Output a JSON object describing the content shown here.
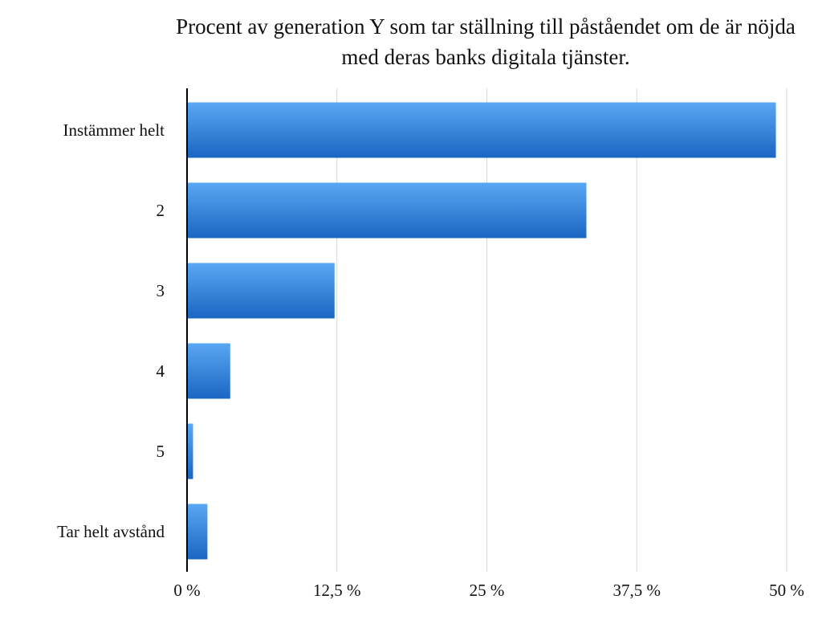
{
  "chart_data": {
    "type": "bar",
    "orientation": "horizontal",
    "title": "Procent av generation Y som tar ställning till påståendet om de är nöjda med deras banks digitala tjänster.",
    "categories": [
      "Instämmer helt",
      "2",
      "3",
      "4",
      "5",
      "Tar helt avstånd"
    ],
    "values": [
      49.1,
      33.3,
      12.3,
      3.6,
      0.5,
      1.7
    ],
    "xlim": [
      0,
      50
    ],
    "xticks": [
      0,
      12.5,
      25,
      37.5,
      50
    ],
    "xtick_labels": [
      "0 %",
      "12,5 %",
      "25 %",
      "37,5 %",
      "50 %"
    ],
    "xlabel": "",
    "ylabel": "",
    "grid": "vertical",
    "legend": "none",
    "bar_color_light": "#5aa7f3",
    "bar_color_dark": "#1a66c2",
    "grid_color": "#d9d9d9",
    "axis_color": "#000000"
  }
}
